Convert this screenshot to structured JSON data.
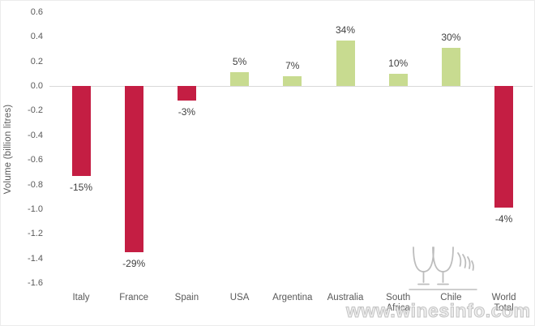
{
  "chart_data": {
    "type": "bar",
    "title": "",
    "xlabel": "",
    "ylabel": "Volume (billion litres)",
    "ylim": [
      -1.6,
      0.6
    ],
    "ytick_step": 0.2,
    "grid": "zero-line-only",
    "legend_position": "none",
    "categories": [
      "Italy",
      "France",
      "Spain",
      "USA",
      "Argentina",
      "Australia",
      "South Africa",
      "Chile",
      "World Total"
    ],
    "values": [
      -0.73,
      -1.35,
      -0.12,
      0.11,
      0.08,
      0.37,
      0.1,
      0.31,
      -0.99
    ],
    "bar_labels": [
      "-15%",
      "-29%",
      "-3%",
      "5%",
      "7%",
      "34%",
      "10%",
      "30%",
      "-4%"
    ],
    "colors": {
      "negative_bar": "#c41e43",
      "positive_bar": "#c8db90",
      "axis_text": "#595959",
      "data_label_text": "#404040",
      "zero_line": "#d9d9d9"
    }
  },
  "watermark": {
    "text": "www.winesinfo.com",
    "logo_icon": "wine-glasses-icon"
  }
}
